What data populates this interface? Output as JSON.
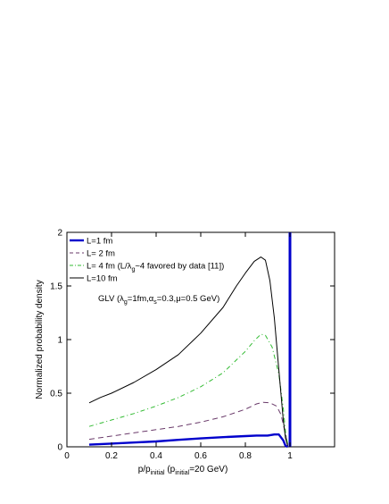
{
  "chart_data": {
    "type": "line",
    "xlabel": "p/p_initial (p_initial=20 GeV)",
    "xlabel_parts": {
      "main": "p/p",
      "sub1": "initial",
      "mid": " (p",
      "sub2": "initial",
      "end": "=20 GeV)"
    },
    "ylabel": "Normalized probability density",
    "xlim": [
      0,
      1.2
    ],
    "ylim": [
      0,
      2
    ],
    "x_ticks": [
      {
        "value": 0,
        "label": "0"
      },
      {
        "value": 0.2,
        "label": "0.2"
      },
      {
        "value": 0.4,
        "label": "0.4"
      },
      {
        "value": 0.6,
        "label": "0.6"
      },
      {
        "value": 0.8,
        "label": "0.8"
      },
      {
        "value": 1.0,
        "label": "1"
      }
    ],
    "y_ticks": [
      {
        "value": 0,
        "label": "0"
      },
      {
        "value": 0.5,
        "label": "0.5"
      },
      {
        "value": 1.0,
        "label": "1"
      },
      {
        "value": 1.5,
        "label": "1.5"
      },
      {
        "value": 2.0,
        "label": "2"
      }
    ],
    "annotation": {
      "text": "GLV (λg=1fm,αs=0.3,μ=0.5 GeV)",
      "parts": {
        "a": "GLV (λ",
        "s1": "g",
        "b": "=1fm,α",
        "s2": "s",
        "c": "=0.3,μ=0.5 GeV)"
      },
      "x": 0.14,
      "y": 1.36
    },
    "legend_placement": "top-left",
    "delta_spike": {
      "x": 1.0,
      "color": "#0000cc"
    },
    "series": [
      {
        "name": "L=1 fm",
        "color": "#0000cc",
        "style": "solid",
        "weight": "thick",
        "points": [
          [
            0.1,
            0.02
          ],
          [
            0.2,
            0.03
          ],
          [
            0.3,
            0.04
          ],
          [
            0.4,
            0.05
          ],
          [
            0.5,
            0.065
          ],
          [
            0.6,
            0.078
          ],
          [
            0.7,
            0.09
          ],
          [
            0.8,
            0.1
          ],
          [
            0.85,
            0.105
          ],
          [
            0.9,
            0.105
          ],
          [
            0.93,
            0.115
          ],
          [
            0.95,
            0.115
          ],
          [
            0.97,
            0.06
          ],
          [
            0.98,
            0.01
          ],
          [
            0.99,
            0.0
          ]
        ]
      },
      {
        "name": "L= 2 fm",
        "color": "#6a3a6a",
        "style": "dashed",
        "weight": "normal",
        "points": [
          [
            0.1,
            0.07
          ],
          [
            0.2,
            0.1
          ],
          [
            0.3,
            0.13
          ],
          [
            0.4,
            0.16
          ],
          [
            0.5,
            0.19
          ],
          [
            0.6,
            0.23
          ],
          [
            0.7,
            0.28
          ],
          [
            0.8,
            0.35
          ],
          [
            0.85,
            0.4
          ],
          [
            0.88,
            0.415
          ],
          [
            0.91,
            0.41
          ],
          [
            0.94,
            0.38
          ],
          [
            0.96,
            0.3
          ],
          [
            0.98,
            0.12
          ],
          [
            0.99,
            0.02
          ]
        ]
      },
      {
        "name": "L= 4 fm (L/λg~4 favored by data [11])",
        "legend_parts": {
          "a": "L= 4 fm (L/λ",
          "s": "g",
          "b": "~4 favored by data [11])"
        },
        "color": "#33bb33",
        "style": "dashdot",
        "weight": "normal",
        "points": [
          [
            0.1,
            0.19
          ],
          [
            0.2,
            0.25
          ],
          [
            0.3,
            0.31
          ],
          [
            0.4,
            0.38
          ],
          [
            0.5,
            0.46
          ],
          [
            0.6,
            0.56
          ],
          [
            0.7,
            0.69
          ],
          [
            0.8,
            0.89
          ],
          [
            0.84,
            0.99
          ],
          [
            0.87,
            1.05
          ],
          [
            0.89,
            1.04
          ],
          [
            0.92,
            0.93
          ],
          [
            0.95,
            0.68
          ],
          [
            0.97,
            0.36
          ],
          [
            0.98,
            0.14
          ],
          [
            0.99,
            0.02
          ]
        ]
      },
      {
        "name": "L=10 fm",
        "color": "#000000",
        "style": "solid",
        "weight": "normal",
        "points": [
          [
            0.1,
            0.41
          ],
          [
            0.15,
            0.46
          ],
          [
            0.2,
            0.5
          ],
          [
            0.3,
            0.6
          ],
          [
            0.4,
            0.72
          ],
          [
            0.5,
            0.86
          ],
          [
            0.6,
            1.06
          ],
          [
            0.7,
            1.3
          ],
          [
            0.76,
            1.5
          ],
          [
            0.8,
            1.62
          ],
          [
            0.84,
            1.73
          ],
          [
            0.87,
            1.77
          ],
          [
            0.89,
            1.74
          ],
          [
            0.91,
            1.55
          ],
          [
            0.93,
            1.2
          ],
          [
            0.95,
            0.72
          ],
          [
            0.97,
            0.25
          ],
          [
            0.98,
            0.08
          ],
          [
            0.99,
            0.01
          ]
        ]
      }
    ]
  }
}
